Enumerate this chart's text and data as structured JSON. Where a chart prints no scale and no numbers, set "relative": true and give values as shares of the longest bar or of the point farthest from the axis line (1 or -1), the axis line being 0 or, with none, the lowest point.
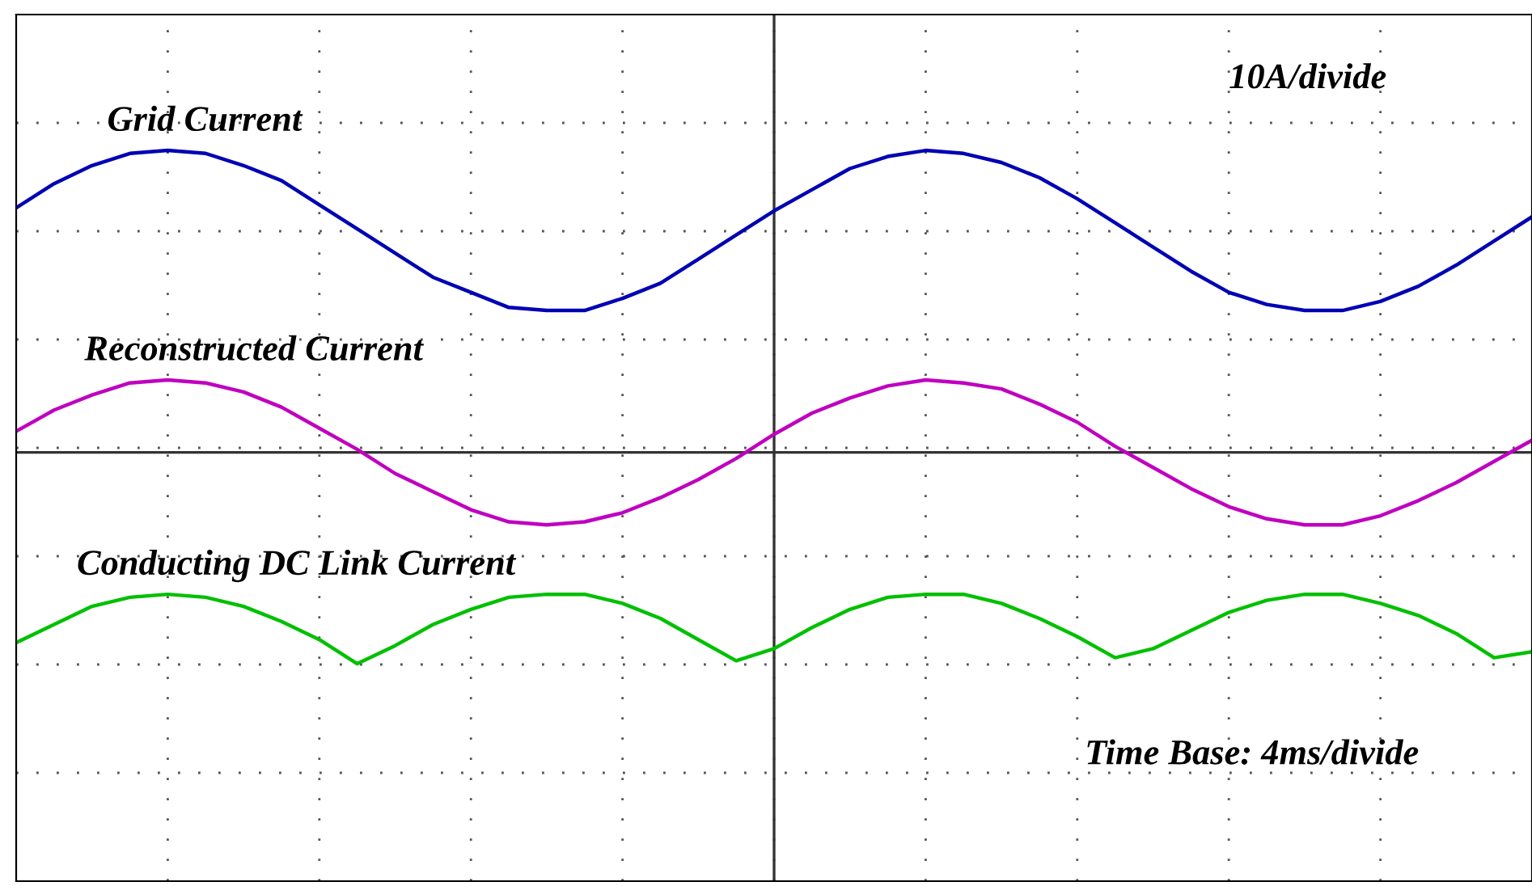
{
  "chart_data": {
    "type": "line",
    "relative": true,
    "grid": true,
    "legend": false,
    "categories": [
      null,
      null,
      null,
      null,
      null,
      null,
      null,
      null,
      null,
      null,
      null,
      null,
      null,
      null,
      null,
      null,
      null,
      null,
      null,
      null,
      null,
      null,
      null,
      null,
      null,
      null,
      null,
      null,
      null,
      null,
      null,
      null,
      null,
      null,
      null,
      null,
      null,
      null,
      null,
      null,
      null
    ],
    "series": [
      {
        "name": "Grid Current",
        "color": "#0000b4",
        "values": [
          0.81,
          0.89,
          0.95,
          0.99,
          1.0,
          0.99,
          0.95,
          0.9,
          0.82,
          0.74,
          0.66,
          0.58,
          0.53,
          0.48,
          0.47,
          0.47,
          0.51,
          0.56,
          0.64,
          0.72,
          0.8,
          0.87,
          0.94,
          0.98,
          1.0,
          0.99,
          0.96,
          0.91,
          0.84,
          0.76,
          0.68,
          0.6,
          0.53,
          0.49,
          0.47,
          0.47,
          0.5,
          0.55,
          0.62,
          0.7,
          0.78
        ]
      },
      {
        "name": "Reconstructed Current",
        "color": "#c000c0",
        "values": [
          0.07,
          0.14,
          0.19,
          0.23,
          0.24,
          0.23,
          0.2,
          0.15,
          0.08,
          0.01,
          -0.07,
          -0.13,
          -0.19,
          -0.23,
          -0.24,
          -0.23,
          -0.2,
          -0.15,
          -0.09,
          -0.02,
          0.06,
          0.13,
          0.18,
          0.22,
          0.24,
          0.23,
          0.21,
          0.16,
          0.1,
          0.02,
          -0.05,
          -0.12,
          -0.18,
          -0.22,
          -0.24,
          -0.24,
          -0.21,
          -0.16,
          -0.1,
          -0.03,
          0.04
        ]
      },
      {
        "name": "Conducting DC Link Current",
        "color": "#00c000",
        "values": [
          -0.63,
          -0.57,
          -0.51,
          -0.48,
          -0.47,
          -0.48,
          -0.51,
          -0.56,
          -0.62,
          -0.7,
          -0.64,
          -0.57,
          -0.52,
          -0.48,
          -0.47,
          -0.47,
          -0.5,
          -0.55,
          -0.62,
          -0.69,
          -0.65,
          -0.58,
          -0.52,
          -0.48,
          -0.47,
          -0.47,
          -0.5,
          -0.55,
          -0.61,
          -0.68,
          -0.65,
          -0.59,
          -0.53,
          -0.49,
          -0.47,
          -0.47,
          -0.5,
          -0.54,
          -0.6,
          -0.68,
          -0.66
        ]
      }
    ],
    "annotations": [
      "10A/divide",
      "Time Base: 4ms/divide"
    ]
  }
}
